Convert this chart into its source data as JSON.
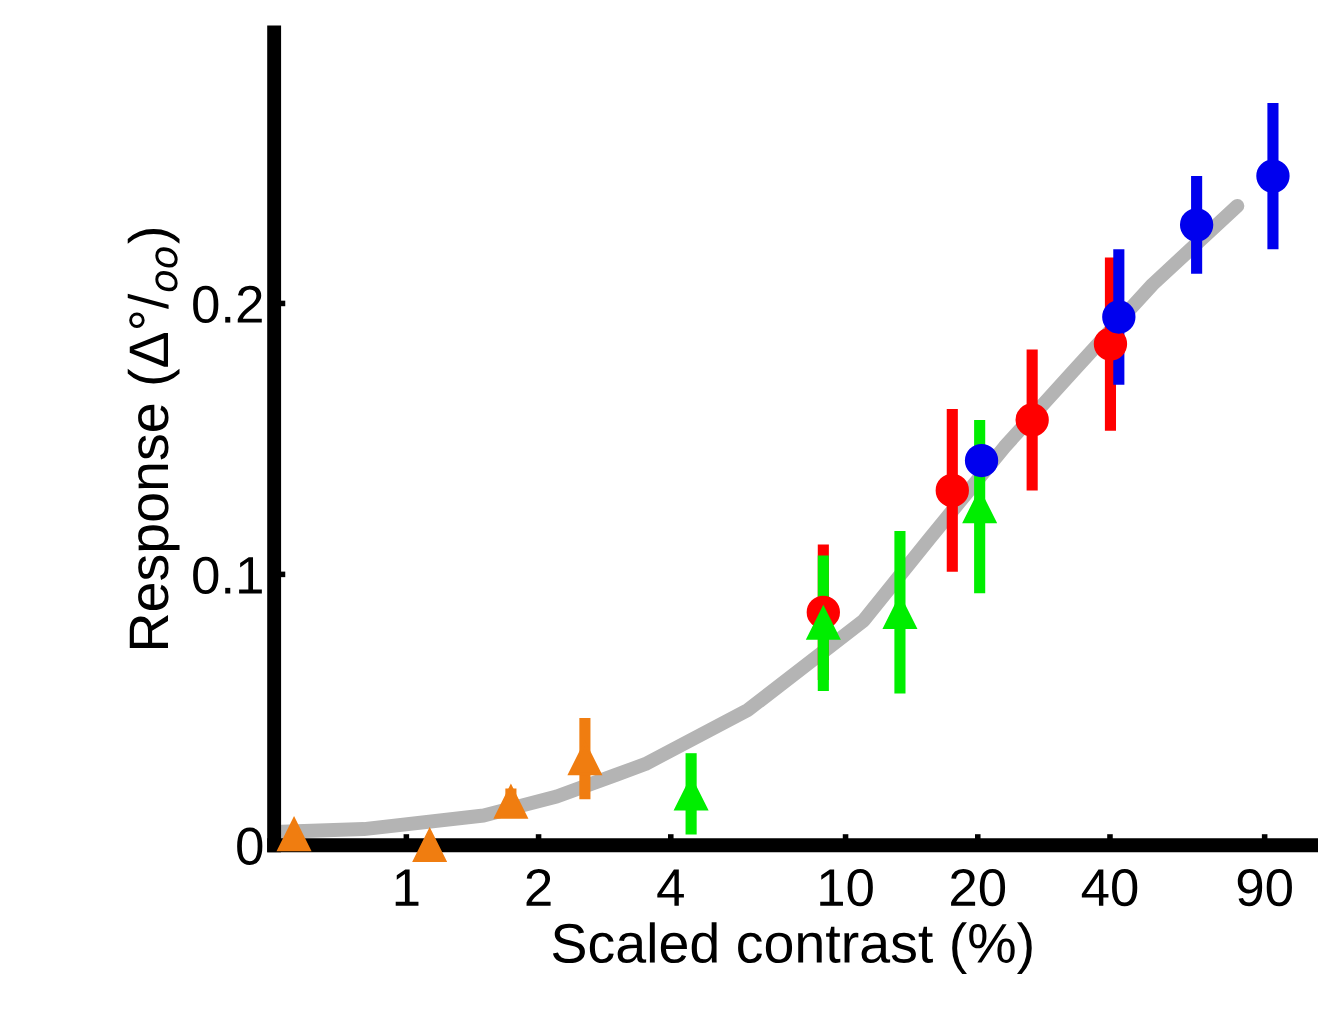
{
  "chart_data": {
    "type": "scatter",
    "xlabel": "Scaled contrast (%)",
    "ylabel": "Response (Δ°/$_{oo}$)",
    "log": "x",
    "xlim": [
      0.5,
      115
    ],
    "xticks": [
      1,
      2,
      4,
      10,
      20,
      40,
      90
    ],
    "ylim": [
      0,
      0.3
    ],
    "yticks": [
      0,
      0.1,
      0.2
    ],
    "grid": false,
    "legend": false,
    "series": [
      {
        "type": "line",
        "color": "#b4b4b4",
        "marker": "none",
        "line_style": "solid",
        "x": [
          0.52,
          0.8,
          1.5,
          2.2,
          3,
          3.5,
          6,
          11,
          15.5,
          23,
          33,
          50,
          78
        ],
        "values": [
          0.005,
          0.006,
          0.011,
          0.018,
          0.026,
          0.03,
          0.05,
          0.083,
          0.113,
          0.147,
          0.175,
          0.207,
          0.236
        ]
      },
      {
        "color": "#f07d10",
        "marker": "triangle",
        "x": [
          0.555,
          1.13,
          1.73,
          2.55
        ],
        "values": [
          0.004,
          0.0,
          0.016,
          0.032
        ],
        "errors": [
          null,
          null,
          0.005,
          0.015
        ]
      },
      {
        "color": "#ff0000",
        "marker": "circle",
        "x": [
          8.9,
          17.5,
          26.6,
          40.1
        ],
        "values": [
          0.086,
          0.131,
          0.157,
          0.185
        ],
        "errors": [
          0.025,
          0.03,
          0.026,
          0.032
        ]
      },
      {
        "color": "#0000ee",
        "marker": "circle",
        "x": [
          20.4,
          41.9,
          63,
          94
        ],
        "values": [
          0.142,
          0.195,
          0.229,
          0.247
        ],
        "errors": [
          null,
          0.025,
          0.018,
          0.027
        ]
      },
      {
        "color": "#00ee00",
        "marker": "triangle",
        "x": [
          4.45,
          8.9,
          13.3,
          20.2
        ],
        "values": [
          0.019,
          0.082,
          0.086,
          0.125
        ],
        "errors": [
          0.015,
          0.025,
          0.03,
          0.032
        ]
      }
    ]
  }
}
